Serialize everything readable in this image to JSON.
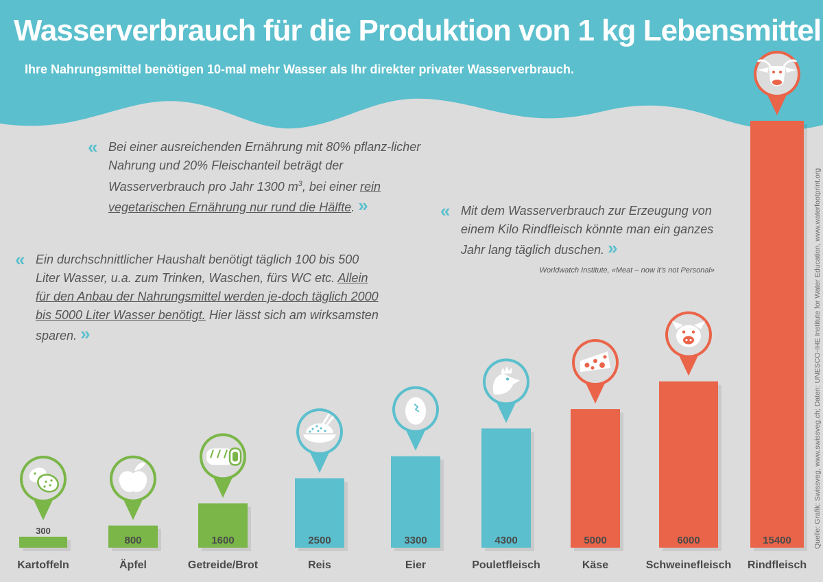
{
  "header": {
    "title": "Wasserverbrauch für die Produktion von 1 kg Lebensmittel",
    "subtitle": "Ihre Nahrungsmittel benötigen 10-mal mehr Wasser als Ihr direkter privater Wasserverbrauch."
  },
  "quotes": {
    "q1": {
      "part1": "Bei einer ausreichenden Ernährung mit 80% pflanz-licher Nahrung und 20% Fleischanteil beträgt der Wasserverbrauch pro Jahr 1300 m",
      "sup": "3",
      "part2": ", bei einer ",
      "underlined": "rein vegetarischen Ernährung nur rund die Hälfte",
      "end": "."
    },
    "q2": {
      "part1": "Ein durchschnittlicher Haushalt benötigt täglich 100 bis 500 Liter Wasser, u.a. zum Trinken, Waschen, fürs WC etc. ",
      "underlined": "Allein für den Anbau der Nahrungsmittel werden je-doch täglich 2000 bis 5000 Liter Wasser benötigt.",
      "end": " Hier lässt sich am wirksamsten sparen."
    },
    "q3": {
      "text": "Mit dem Wasserverbrauch zur Erzeugung von einem Kilo Rindfleisch könnte man ein ganzes Jahr lang täglich duschen."
    },
    "q3_source": "Worldwatch Institute, «Meat – now it’s not Personal»",
    "open_mark": "«",
    "close_mark": "»"
  },
  "source_credit": "Quelle: Grafik: Swissveg, www.swissveg.ch; Daten: UNESCO-IHE Institute for Water Education, www.waterfootprint.org",
  "colors": {
    "header": "#5bbfcd",
    "background": "#dcdcdc",
    "plant": "#7ab648",
    "animal_product": "#5bbfcd",
    "meat": "#ea6449",
    "text": "#555555"
  },
  "chart_data": {
    "type": "bar",
    "title": "Wasserverbrauch für die Produktion von 1 kg Lebensmittel",
    "xlabel": "",
    "ylabel": "",
    "ylim": [
      0,
      15400
    ],
    "grid": false,
    "legend": "none",
    "categories": [
      "Kartoffeln",
      "Äpfel",
      "Getreide/Brot",
      "Reis",
      "Eier",
      "Pouletfleisch",
      "Käse",
      "Schweinefleisch",
      "Rindfleisch"
    ],
    "values": [
      300,
      800,
      1600,
      2500,
      3300,
      4300,
      5000,
      6000,
      15400
    ],
    "bar_colors": [
      "#7ab648",
      "#7ab648",
      "#7ab648",
      "#5bbfcd",
      "#5bbfcd",
      "#5bbfcd",
      "#ea6449",
      "#ea6449",
      "#ea6449"
    ],
    "icons": [
      "potato-icon",
      "apple-icon",
      "bread-icon",
      "rice-bowl-icon",
      "egg-icon",
      "chicken-icon",
      "cheese-icon",
      "pig-icon",
      "cow-icon"
    ]
  }
}
